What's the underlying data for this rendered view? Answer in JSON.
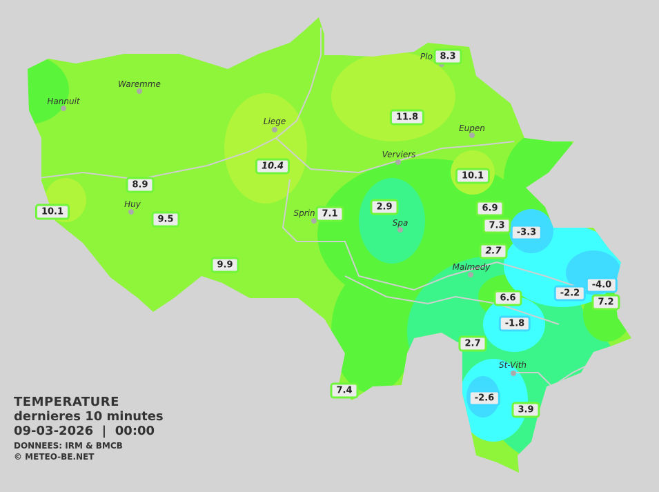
{
  "legend": {
    "title": "TEMPERATURE",
    "subtitle": "dernieres 10 minutes",
    "datetime": "09-03-2026  |  00:00",
    "source": "DONNEES: IRM & BMCB",
    "copyright": "© METEO-BE.NET"
  },
  "colors": {
    "background": "#d4d4d4",
    "warm": "#b0f53a",
    "mild": "#8ef53a",
    "green": "#5af53a",
    "teal": "#3cf58a",
    "cyan": "#40ffff",
    "cold": "#40dcff"
  },
  "cities": [
    "Plo",
    "Waremme",
    "Hannuit",
    "Liege",
    "Eupen",
    "Verviers",
    "Huy",
    "Sprin",
    "Spa",
    "Malmedy",
    "St-Vith"
  ],
  "stations": [
    "8.3",
    "11.8",
    "10.4",
    "10.1",
    "8.9",
    "10.1",
    "9.5",
    "7.1",
    "2.9",
    "6.9",
    "7.3",
    "-3.3",
    "2.7",
    "9.9",
    "-2.2",
    "-4.0",
    "7.2",
    "6.6",
    "-1.8",
    "2.7",
    "7.4",
    "-2.6",
    "3.9"
  ]
}
